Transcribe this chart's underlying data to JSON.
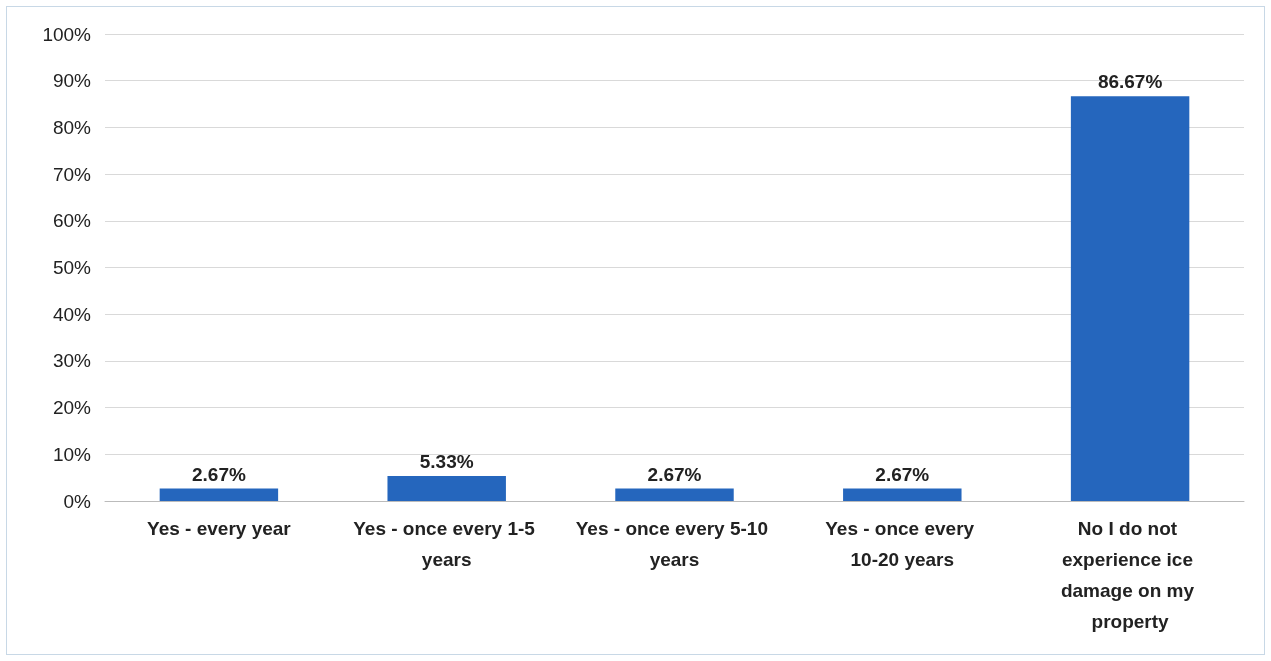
{
  "chart_data": {
    "type": "bar",
    "categories": [
      "Yes - every year",
      "Yes - once every 1-5 years",
      "Yes - once every 5-10 years",
      "Yes - once every 10-20 years",
      "No I do not experience ice damage on my property"
    ],
    "values": [
      2.67,
      5.33,
      2.67,
      2.67,
      86.67
    ],
    "value_labels": [
      "2.67%",
      "5.33%",
      "2.67%",
      "2.67%",
      "86.67%"
    ],
    "color": "#2566bd",
    "ylim": [
      0,
      100
    ],
    "yticks": [
      {
        "value": 0,
        "label": "0%"
      },
      {
        "value": 10,
        "label": "10%"
      },
      {
        "value": 20,
        "label": "20%"
      },
      {
        "value": 30,
        "label": "30%"
      },
      {
        "value": 40,
        "label": "40%"
      },
      {
        "value": 50,
        "label": "50%"
      },
      {
        "value": 60,
        "label": "60%"
      },
      {
        "value": 70,
        "label": "70%"
      },
      {
        "value": 80,
        "label": "80%"
      },
      {
        "value": 90,
        "label": "90%"
      },
      {
        "value": 100,
        "label": "100%"
      }
    ],
    "grid": "y"
  }
}
